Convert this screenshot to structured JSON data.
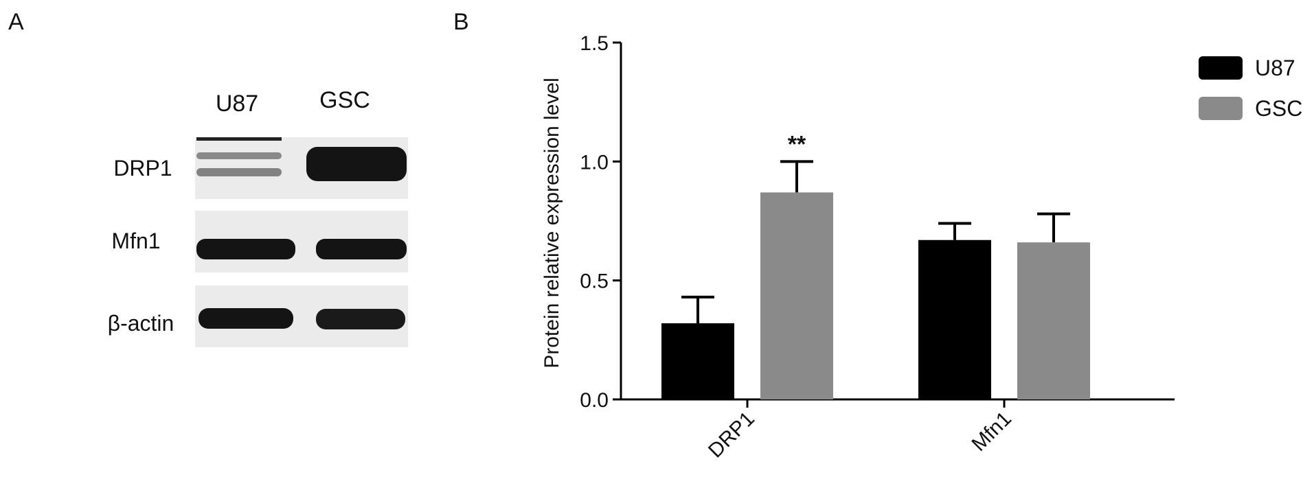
{
  "panel_a": {
    "label": "A",
    "lane_labels": [
      "U87",
      "GSC"
    ],
    "row_labels": [
      "DRP1",
      "Mfn1",
      "β-actin"
    ],
    "band_color": "#141414",
    "blot_background": "#ebebeb"
  },
  "panel_b": {
    "label": "B"
  },
  "chart_data": {
    "type": "bar",
    "categories": [
      "DRP1",
      "Mfn1"
    ],
    "series": [
      {
        "name": "U87",
        "values": [
          0.32,
          0.67
        ],
        "errors": [
          0.11,
          0.07
        ],
        "color": "#000000"
      },
      {
        "name": "GSC",
        "values": [
          0.87,
          0.66
        ],
        "errors": [
          0.13,
          0.12
        ],
        "color": "#8a8a8a"
      }
    ],
    "annotations": [
      {
        "category": "DRP1",
        "series": "GSC",
        "text": "**"
      }
    ],
    "ylabel": "Protein relative expression level",
    "xlabel": "",
    "ylim": [
      0,
      1.5
    ],
    "yticks": [
      "0.0",
      "0.5",
      "1.0",
      "1.5"
    ],
    "legend_position": "top-right",
    "grid": false
  }
}
